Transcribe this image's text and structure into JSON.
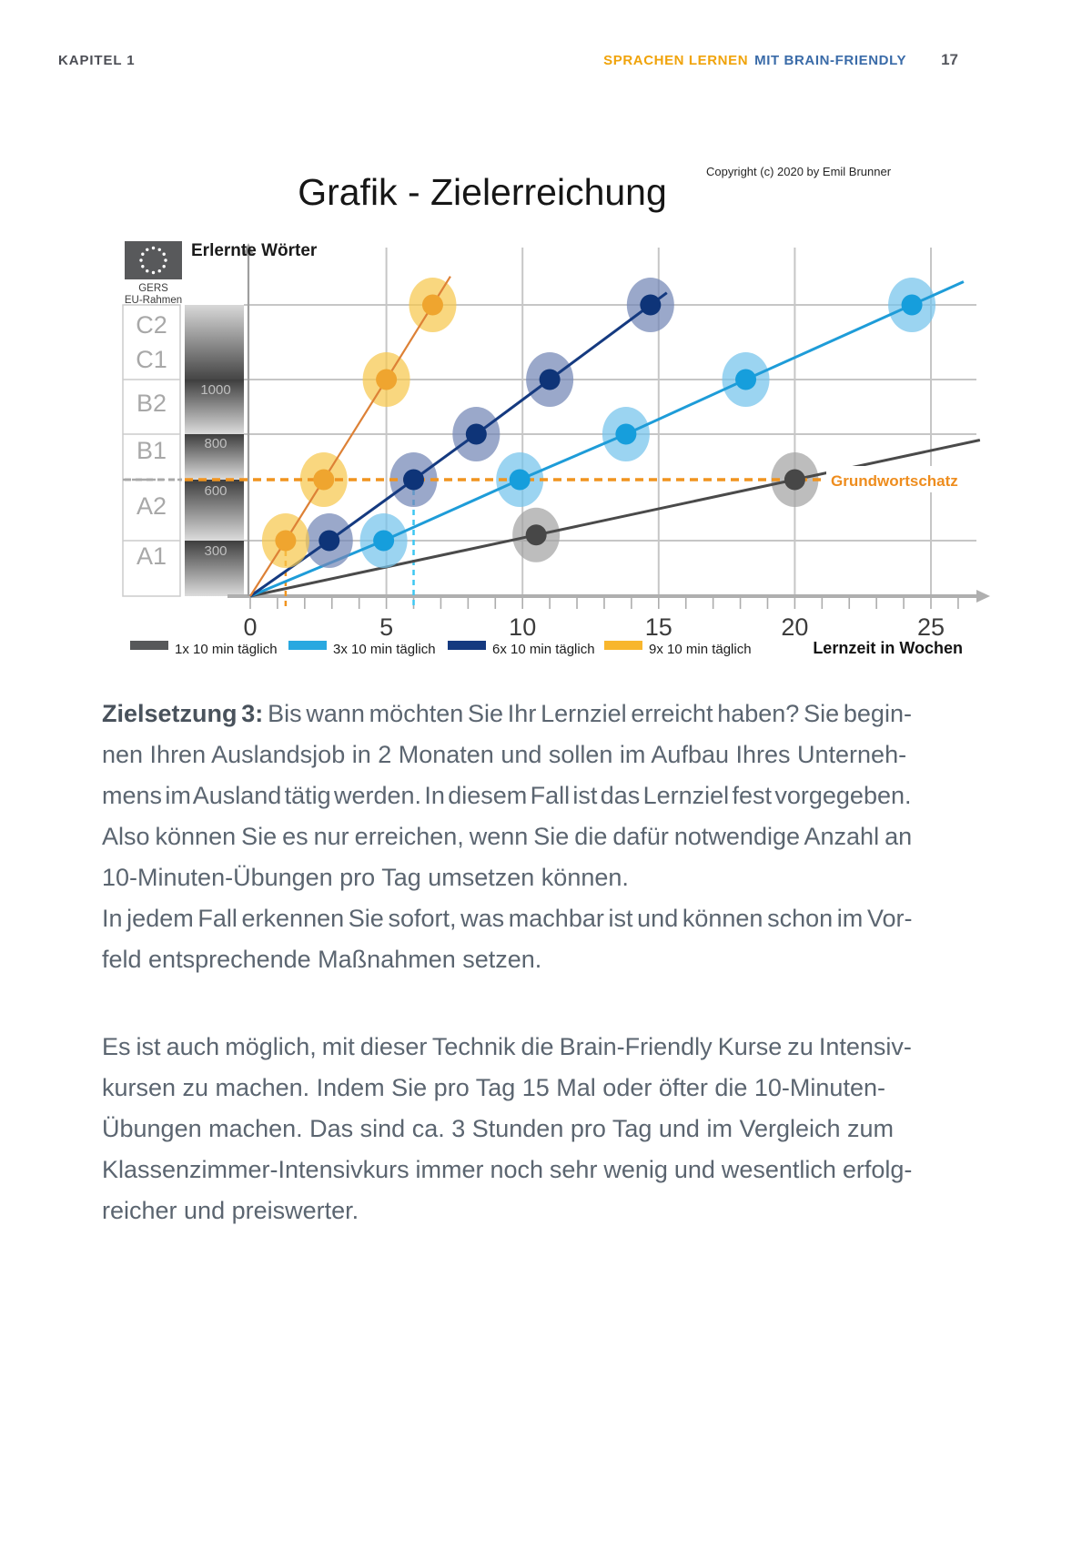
{
  "header": {
    "left": "KAPITEL 1",
    "right_part1": "SPRACHEN LERNEN",
    "right_part2": "MIT BRAIN-FRIENDLY",
    "page_number": "17"
  },
  "figure": {
    "title": "Grafik - Zielerreichung",
    "copyright": "Copyright (c) 2020 by Emil Brunner",
    "y_axis_label": "Erlernte Wörter",
    "x_axis_label": "Lernzeit in Wochen",
    "eu_badge": {
      "line1": "GERS",
      "line2": "EU-Rahmen"
    },
    "cefr_levels": [
      "C2",
      "C1",
      "B2",
      "B1",
      "A2",
      "A1"
    ],
    "word_scale_labels": [
      "1000",
      "800",
      "600",
      "300"
    ],
    "goal_label": "Grundwortschatz"
  },
  "chart_data": {
    "type": "line",
    "title": "Grafik - Zielerreichung",
    "xlabel": "Lernzeit in Wochen",
    "ylabel": "Erlernte Wörter",
    "x_ticks": [
      0,
      5,
      10,
      15,
      20,
      25
    ],
    "xlim": [
      0,
      27
    ],
    "y_word_levels": [
      300,
      600,
      800,
      1000,
      1200
    ],
    "grid": "on",
    "legend_position": "bottom",
    "goal_line": {
      "label": "Grundwortschatz",
      "words": 600,
      "style": "dashed",
      "color": "#F0941F"
    },
    "series": [
      {
        "name": "1x 10 min täglich",
        "color": "#4A4A4A",
        "halo": "#A3A3A3",
        "dot": "#474747",
        "swatch": "#57585A",
        "line_width": 3,
        "line_end_week": 26.8,
        "on_line": true,
        "points": [
          {
            "weeks": 10.5,
            "words": 300
          },
          {
            "weeks": 20,
            "words": 600
          }
        ]
      },
      {
        "name": "3x 10 min täglich",
        "color": "#1E9CD8",
        "halo": "#74C4EC",
        "dot": "#169EDC",
        "swatch": "#29A8E0",
        "line_width": 3,
        "line_end_week": 26.2,
        "points": [
          {
            "weeks": 4.9,
            "words": 300
          },
          {
            "weeks": 9.9,
            "words": 600
          },
          {
            "weeks": 13.8,
            "words": 800
          },
          {
            "weeks": 18.2,
            "words": 1000
          },
          {
            "weeks": 24.3,
            "words": 1200
          }
        ]
      },
      {
        "name": "6x 10 min täglich",
        "color": "#153A80",
        "halo": "#7386B6",
        "dot": "#0E3478",
        "swatch": "#153A80",
        "line_width": 3,
        "line_end_week": 15.3,
        "points": [
          {
            "weeks": 2.9,
            "words": 300
          },
          {
            "weeks": 6,
            "words": 600
          },
          {
            "weeks": 8.3,
            "words": 800
          },
          {
            "weeks": 11,
            "words": 1000
          },
          {
            "weeks": 14.7,
            "words": 1200
          }
        ]
      },
      {
        "name": "9x 10 min täglich",
        "color": "#DD8136",
        "halo": "#F7C84E",
        "dot": "#EFA52F",
        "swatch": "#F8B62D",
        "line_width": 2.2,
        "line_end_week": 7.35,
        "points": [
          {
            "weeks": 1.3,
            "words": 300
          },
          {
            "weeks": 2.7,
            "words": 600
          },
          {
            "weeks": 5,
            "words": 1000
          },
          {
            "weeks": 6.7,
            "words": 1200
          }
        ]
      }
    ],
    "annotations": {
      "vertical_guides": [
        {
          "weeks": 1.3,
          "from_words": 300,
          "color": "#F0941F"
        },
        {
          "weeks": 6,
          "from_words": 600,
          "color": "#3EC7F2"
        }
      ]
    },
    "note": "y-axis is schematic (non-linear spacing); top gridline word value (~1200) estimated"
  },
  "body": {
    "paragraphs": [
      {
        "lead": "Zielsetzung 3:",
        "lines": [
          {
            "text": "Bis wann möchten Sie Ihr Lernziel erreicht haben? Sie begin-",
            "just": true,
            "with_lead": true
          },
          {
            "text": "nen Ihren Auslandsjob in 2 Monaten und sollen im Aufbau Ihres Unterneh-",
            "just": true
          },
          {
            "text": "mens im Ausland tätig werden. In diesem Fall ist das Lernziel fest vorgegeben.",
            "just": true
          },
          {
            "text": "Also können Sie es nur erreichen, wenn Sie die dafür notwendige Anzahl an",
            "just": true
          },
          {
            "text": "10-Minuten-Übungen pro Tag umsetzen können.",
            "just": false
          }
        ]
      },
      {
        "lines": [
          {
            "text": "In jedem Fall erkennen Sie sofort, was machbar ist und können schon im Vor-",
            "just": true
          },
          {
            "text": "feld entsprechende Maßnahmen setzen.",
            "just": false
          }
        ]
      },
      {
        "gap_before": true,
        "lines": [
          {
            "text": "Es ist auch möglich, mit dieser Technik die Brain-Friendly Kurse zu Intensiv-",
            "just": true
          },
          {
            "text": "kursen zu machen. Indem Sie pro Tag 15 Mal oder öfter die 10-Minuten-",
            "just": true
          },
          {
            "text": "Übungen machen. Das sind ca. 3 Stunden pro Tag und im Vergleich zum",
            "just": true
          },
          {
            "text": "Klassenzimmer-Intensivkurs immer noch sehr wenig und wesentlich erfolg-",
            "just": true
          },
          {
            "text": "reicher und preiswerter.",
            "just": false
          }
        ]
      }
    ]
  }
}
